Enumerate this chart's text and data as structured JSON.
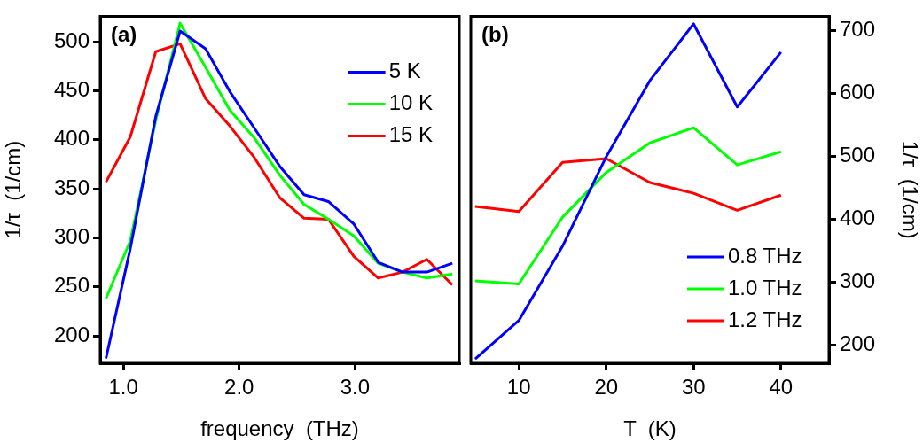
{
  "chart_data": [
    {
      "type": "line",
      "xlabel": "frequency  (THz)",
      "ylabel": "1/τ  (1/cm)",
      "annotations": [
        "(a)"
      ],
      "x": [
        0.85,
        1.06,
        1.28,
        1.49,
        1.71,
        1.92,
        2.13,
        2.35,
        2.56,
        2.77,
        2.99,
        3.2,
        3.41,
        3.62,
        3.84
      ],
      "series": [
        {
          "name": "5 K",
          "color": "#0000ff",
          "values": [
            177,
            289,
            424,
            511,
            493,
            449,
            412,
            373,
            344,
            337,
            314,
            275,
            265,
            265,
            274
          ]
        },
        {
          "name": "10 K",
          "color": "#00ff00",
          "values": [
            238,
            297,
            420,
            519,
            474,
            430,
            402,
            364,
            334,
            319,
            302,
            274,
            265,
            259,
            263
          ]
        },
        {
          "name": "15 K",
          "color": "#ff0000",
          "values": [
            357,
            403,
            490,
            498,
            442,
            414,
            382,
            341,
            320,
            319,
            281,
            259,
            265,
            278,
            252
          ]
        }
      ],
      "xlim": [
        0.8,
        3.9
      ],
      "xticks": [
        {
          "value": 1,
          "label": "1.0"
        },
        {
          "value": 2,
          "label": "2.0"
        },
        {
          "value": 3,
          "label": "3.0"
        }
      ],
      "ylim": [
        172,
        526
      ],
      "yticks": [
        200,
        250,
        300,
        350,
        400,
        450,
        500
      ],
      "legend": "top right",
      "grid": false,
      "line_style": "solid",
      "marker": "none"
    },
    {
      "type": "line",
      "xlabel": "T  (K)",
      "y2label": "1/τ  (1/cm)",
      "annotations": [
        "(b)"
      ],
      "x": [
        5,
        10,
        15,
        20,
        25,
        30,
        35,
        40
      ],
      "series": [
        {
          "name": "0.8 THz",
          "color": "#0000ff",
          "axis": "y2",
          "values": [
            178,
            239,
            357,
            499,
            620,
            710,
            578,
            665
          ]
        },
        {
          "name": "1.0 THz",
          "color": "#00ff00",
          "axis": "y2",
          "values": [
            302,
            297,
            403,
            474,
            521,
            545,
            486,
            507
          ]
        },
        {
          "name": "1.2 THz",
          "color": "#ff0000",
          "axis": "y2",
          "values": [
            420,
            412,
            490,
            496,
            458,
            441,
            414,
            438
          ]
        }
      ],
      "xlim": [
        4.5,
        45.5
      ],
      "xticks": [
        10,
        20,
        30,
        40
      ],
      "y2lim": [
        171,
        722
      ],
      "y2ticks": [
        200,
        300,
        400,
        500,
        600,
        700
      ],
      "legend": "bottom right",
      "grid": false,
      "line_style": "solid",
      "marker": "none"
    }
  ]
}
